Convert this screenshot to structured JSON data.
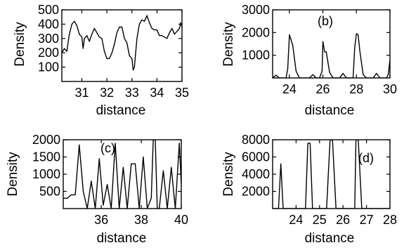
{
  "chart_data": [
    {
      "type": "line",
      "panel_label": "",
      "xlabel": "distance",
      "ylabel": "Density",
      "xlim": [
        30.2,
        35.0
      ],
      "ylim": [
        0,
        500
      ],
      "x_ticks": [
        31,
        32,
        33,
        34,
        35
      ],
      "y_ticks": [
        100,
        200,
        300,
        400,
        500
      ],
      "series": [
        {
          "x": [
            30.2,
            30.3,
            30.4,
            30.5,
            30.6,
            30.7,
            30.8,
            30.9,
            31.0,
            31.05,
            31.1,
            31.2,
            31.3,
            31.4,
            31.5,
            31.6,
            31.7,
            31.8,
            31.9,
            32.0,
            32.1,
            32.2,
            32.3,
            32.4,
            32.5,
            32.6,
            32.7,
            32.8,
            32.9,
            33.0,
            33.05,
            33.1,
            33.2,
            33.3,
            33.4,
            33.5,
            33.6,
            33.7,
            33.8,
            33.9,
            34.0,
            34.1,
            34.2,
            34.3,
            34.4,
            34.5,
            34.6,
            34.7,
            34.8,
            34.9,
            34.95,
            35.0
          ],
          "y": [
            200,
            230,
            210,
            330,
            400,
            420,
            390,
            330,
            310,
            230,
            300,
            320,
            280,
            330,
            370,
            340,
            310,
            300,
            210,
            160,
            160,
            200,
            260,
            340,
            380,
            380,
            300,
            270,
            180,
            160,
            80,
            100,
            300,
            400,
            430,
            420,
            460,
            410,
            370,
            360,
            360,
            320,
            320,
            310,
            300,
            340,
            370,
            330,
            350,
            370,
            410,
            380
          ]
        }
      ]
    },
    {
      "type": "line",
      "panel_label": "(b)",
      "xlabel": "distance",
      "ylabel": "Density",
      "xlim": [
        23.0,
        30.0
      ],
      "ylim": [
        0,
        3000
      ],
      "x_ticks": [
        24,
        26,
        28,
        30
      ],
      "y_ticks": [
        1000,
        2000,
        3000
      ],
      "series": [
        {
          "x": [
            23.0,
            23.2,
            23.4,
            23.6,
            23.8,
            23.9,
            24.0,
            24.2,
            24.4,
            24.6,
            24.8,
            25.0,
            25.2,
            25.4,
            25.6,
            25.8,
            25.95,
            26.0,
            26.1,
            26.2,
            26.4,
            26.6,
            26.8,
            27.0,
            27.2,
            27.4,
            27.6,
            27.8,
            27.9,
            28.0,
            28.1,
            28.2,
            28.4,
            28.6,
            28.8,
            29.0,
            29.2,
            29.4,
            29.6,
            29.8,
            29.9,
            30.0
          ],
          "y": [
            0,
            120,
            0,
            0,
            0,
            400,
            1900,
            1450,
            300,
            0,
            0,
            0,
            0,
            150,
            0,
            0,
            300,
            1600,
            1150,
            1150,
            250,
            0,
            0,
            0,
            200,
            0,
            0,
            0,
            1350,
            1950,
            1900,
            1200,
            150,
            0,
            0,
            0,
            200,
            0,
            0,
            0,
            150,
            800
          ]
        }
      ]
    },
    {
      "type": "line",
      "panel_label": "(c)",
      "xlabel": "distance",
      "ylabel": "Density",
      "xlim": [
        34.1,
        40.0
      ],
      "ylim": [
        0,
        2000
      ],
      "x_ticks": [
        36,
        38,
        40
      ],
      "y_ticks": [
        500,
        1000,
        1500,
        2000
      ],
      "series": [
        {
          "x": [
            34.1,
            34.3,
            34.5,
            34.7,
            34.9,
            35.1,
            35.3,
            35.5,
            35.7,
            35.9,
            36.1,
            36.3,
            36.5,
            36.7,
            36.9,
            37.1,
            37.3,
            37.5,
            37.7,
            37.9,
            38.1,
            38.3,
            38.5,
            38.6,
            38.7,
            38.8,
            38.9,
            39.1,
            39.3,
            39.5,
            39.7,
            39.9,
            40.0
          ],
          "y": [
            300,
            300,
            400,
            400,
            1850,
            500,
            0,
            800,
            0,
            1450,
            100,
            700,
            0,
            1900,
            0,
            1200,
            0,
            1300,
            1300,
            0,
            1500,
            0,
            300,
            2000,
            2000,
            0,
            0,
            1100,
            0,
            1200,
            0,
            1900,
            700
          ]
        }
      ]
    },
    {
      "type": "line",
      "panel_label": "(d)",
      "xlabel": "distance",
      "ylabel": "Density",
      "xlim": [
        23.0,
        28.0
      ],
      "ylim": [
        0,
        8000
      ],
      "x_ticks": [
        24,
        25,
        26,
        27,
        28
      ],
      "y_ticks": [
        2000,
        4000,
        6000,
        8000
      ],
      "series": [
        {
          "x": [
            23.0,
            23.1,
            23.25,
            23.35,
            23.45,
            23.6,
            23.8,
            24.0,
            24.2,
            24.4,
            24.5,
            24.6,
            24.7,
            24.9,
            25.1,
            25.3,
            25.45,
            25.55,
            25.7,
            25.9,
            26.1,
            26.3,
            26.5,
            26.55,
            26.65,
            26.8,
            27.0,
            27.3,
            27.6,
            28.0
          ],
          "y": [
            0,
            0,
            0,
            5200,
            0,
            0,
            0,
            0,
            0,
            0,
            7600,
            7600,
            0,
            0,
            0,
            0,
            8000,
            8000,
            0,
            0,
            0,
            0,
            0,
            8000,
            8000,
            0,
            0,
            0,
            0,
            0
          ]
        }
      ]
    }
  ]
}
